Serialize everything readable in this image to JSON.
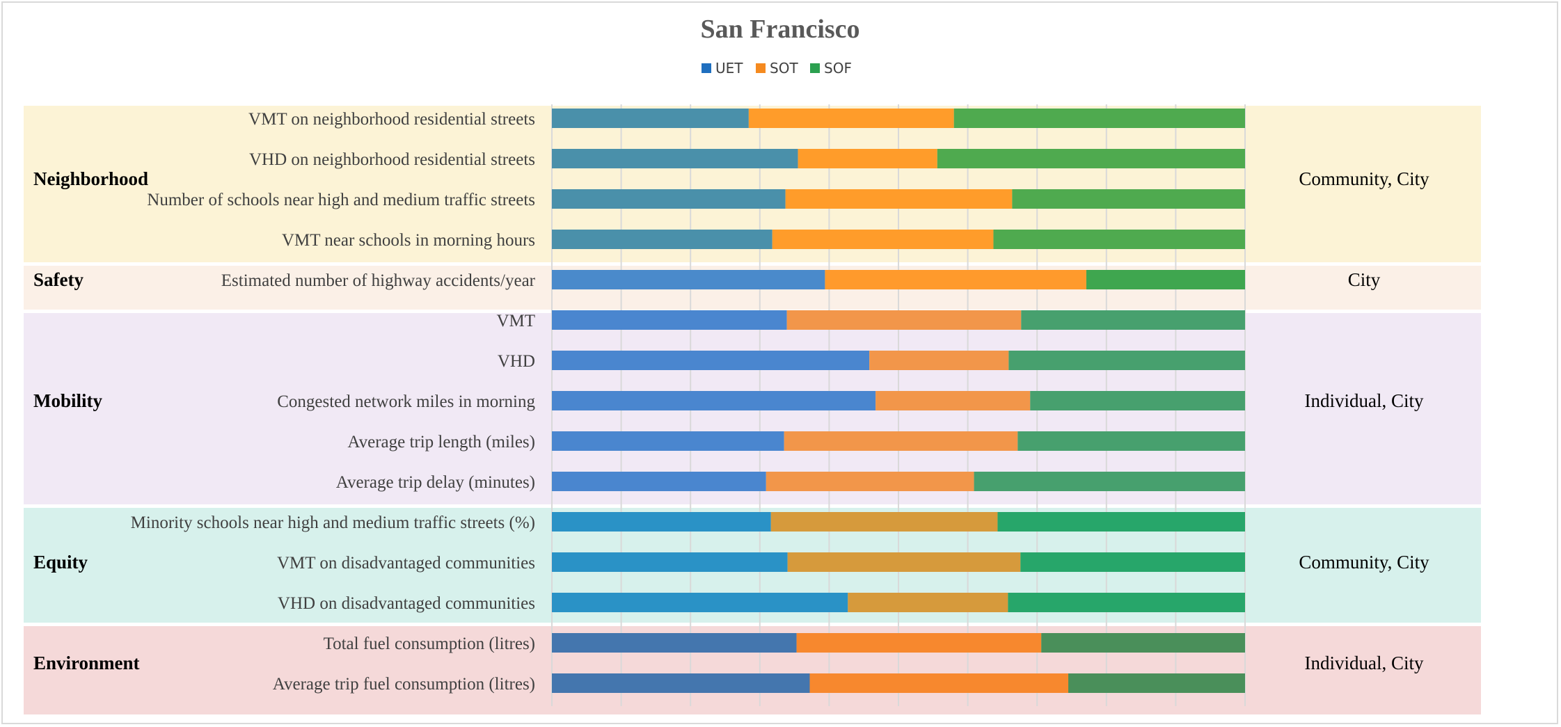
{
  "chart_data": {
    "type": "bar",
    "orientation": "horizontal",
    "stacked": "100%",
    "title": "San Francisco",
    "legend": {
      "entries": [
        "UET",
        "SOT",
        "SOF"
      ],
      "placement": "top-center"
    },
    "series_names": [
      "UET",
      "SOT",
      "SOF"
    ],
    "grid": true,
    "xlim": [
      0,
      100
    ],
    "groups": [
      {
        "name": "Neighborhood",
        "scope": "Community, City",
        "bg": "#fcf3d6",
        "colors": [
          "#4a90aa",
          "#ff9c2a",
          "#4faa4f"
        ],
        "rows": [
          {
            "label": "VMT on neighborhood residential streets",
            "values": [
              28.4,
              29.6,
              42.0
            ]
          },
          {
            "label": "VHD on neighborhood residential streets",
            "values": [
              35.5,
              20.1,
              44.4
            ]
          },
          {
            "label": "Number of schools near high and medium traffic streets",
            "values": [
              33.7,
              32.7,
              33.6
            ]
          },
          {
            "label": "VMT near schools in morning hours",
            "values": [
              31.8,
              31.9,
              36.3
            ]
          }
        ]
      },
      {
        "name": "Safety",
        "scope": "City",
        "bg": "#fbf0e7",
        "colors": [
          "#4a8acb",
          "#ff9a2c",
          "#3fa64f"
        ],
        "rows": [
          {
            "label": "Estimated number of  highway accidents/year",
            "values": [
              39.4,
              37.7,
              22.9
            ]
          }
        ]
      },
      {
        "name": "Mobility",
        "scope": "Individual, City",
        "bg": "#f1e9f5",
        "colors": [
          "#4a86cf",
          "#f2964a",
          "#47a06e"
        ],
        "rows": [
          {
            "label": "VMT",
            "values": [
              33.9,
              33.8,
              32.3
            ]
          },
          {
            "label": "VHD",
            "values": [
              45.8,
              20.1,
              34.1
            ]
          },
          {
            "label": "Congested network miles in morning",
            "values": [
              46.7,
              22.3,
              31.0
            ]
          },
          {
            "label": "Average trip length (miles)",
            "values": [
              33.5,
              33.7,
              32.8
            ]
          },
          {
            "label": "Average trip delay (minutes)",
            "values": [
              30.9,
              30.0,
              39.1
            ]
          }
        ]
      },
      {
        "name": "Equity",
        "scope": "Community, City",
        "bg": "#d7f1ec",
        "colors": [
          "#2a92c6",
          "#d69a3c",
          "#27a66a"
        ],
        "rows": [
          {
            "label": "Minority schools near high and medium traffic streets (%)",
            "values": [
              31.6,
              32.7,
              35.7
            ]
          },
          {
            "label": "VMT on disadvantaged communities",
            "values": [
              34.0,
              33.6,
              32.4
            ]
          },
          {
            "label": "VHD on disadvantaged communities",
            "values": [
              42.7,
              23.1,
              34.2
            ]
          }
        ]
      },
      {
        "name": "Environment",
        "scope": "Individual, City",
        "bg": "#f5d9d9",
        "colors": [
          "#4476ae",
          "#f7882e",
          "#4a8f5a"
        ],
        "rows": [
          {
            "label": "Total fuel consumption (litres)",
            "values": [
              35.3,
              35.3,
              29.4
            ]
          },
          {
            "label": "Average trip fuel consumption (litres)",
            "values": [
              37.2,
              37.3,
              25.5
            ]
          }
        ]
      }
    ]
  },
  "colors": {
    "legend": [
      "#1f6fbf",
      "#f58a1f",
      "#2ca050"
    ],
    "gridline": "#d9d9d9"
  }
}
